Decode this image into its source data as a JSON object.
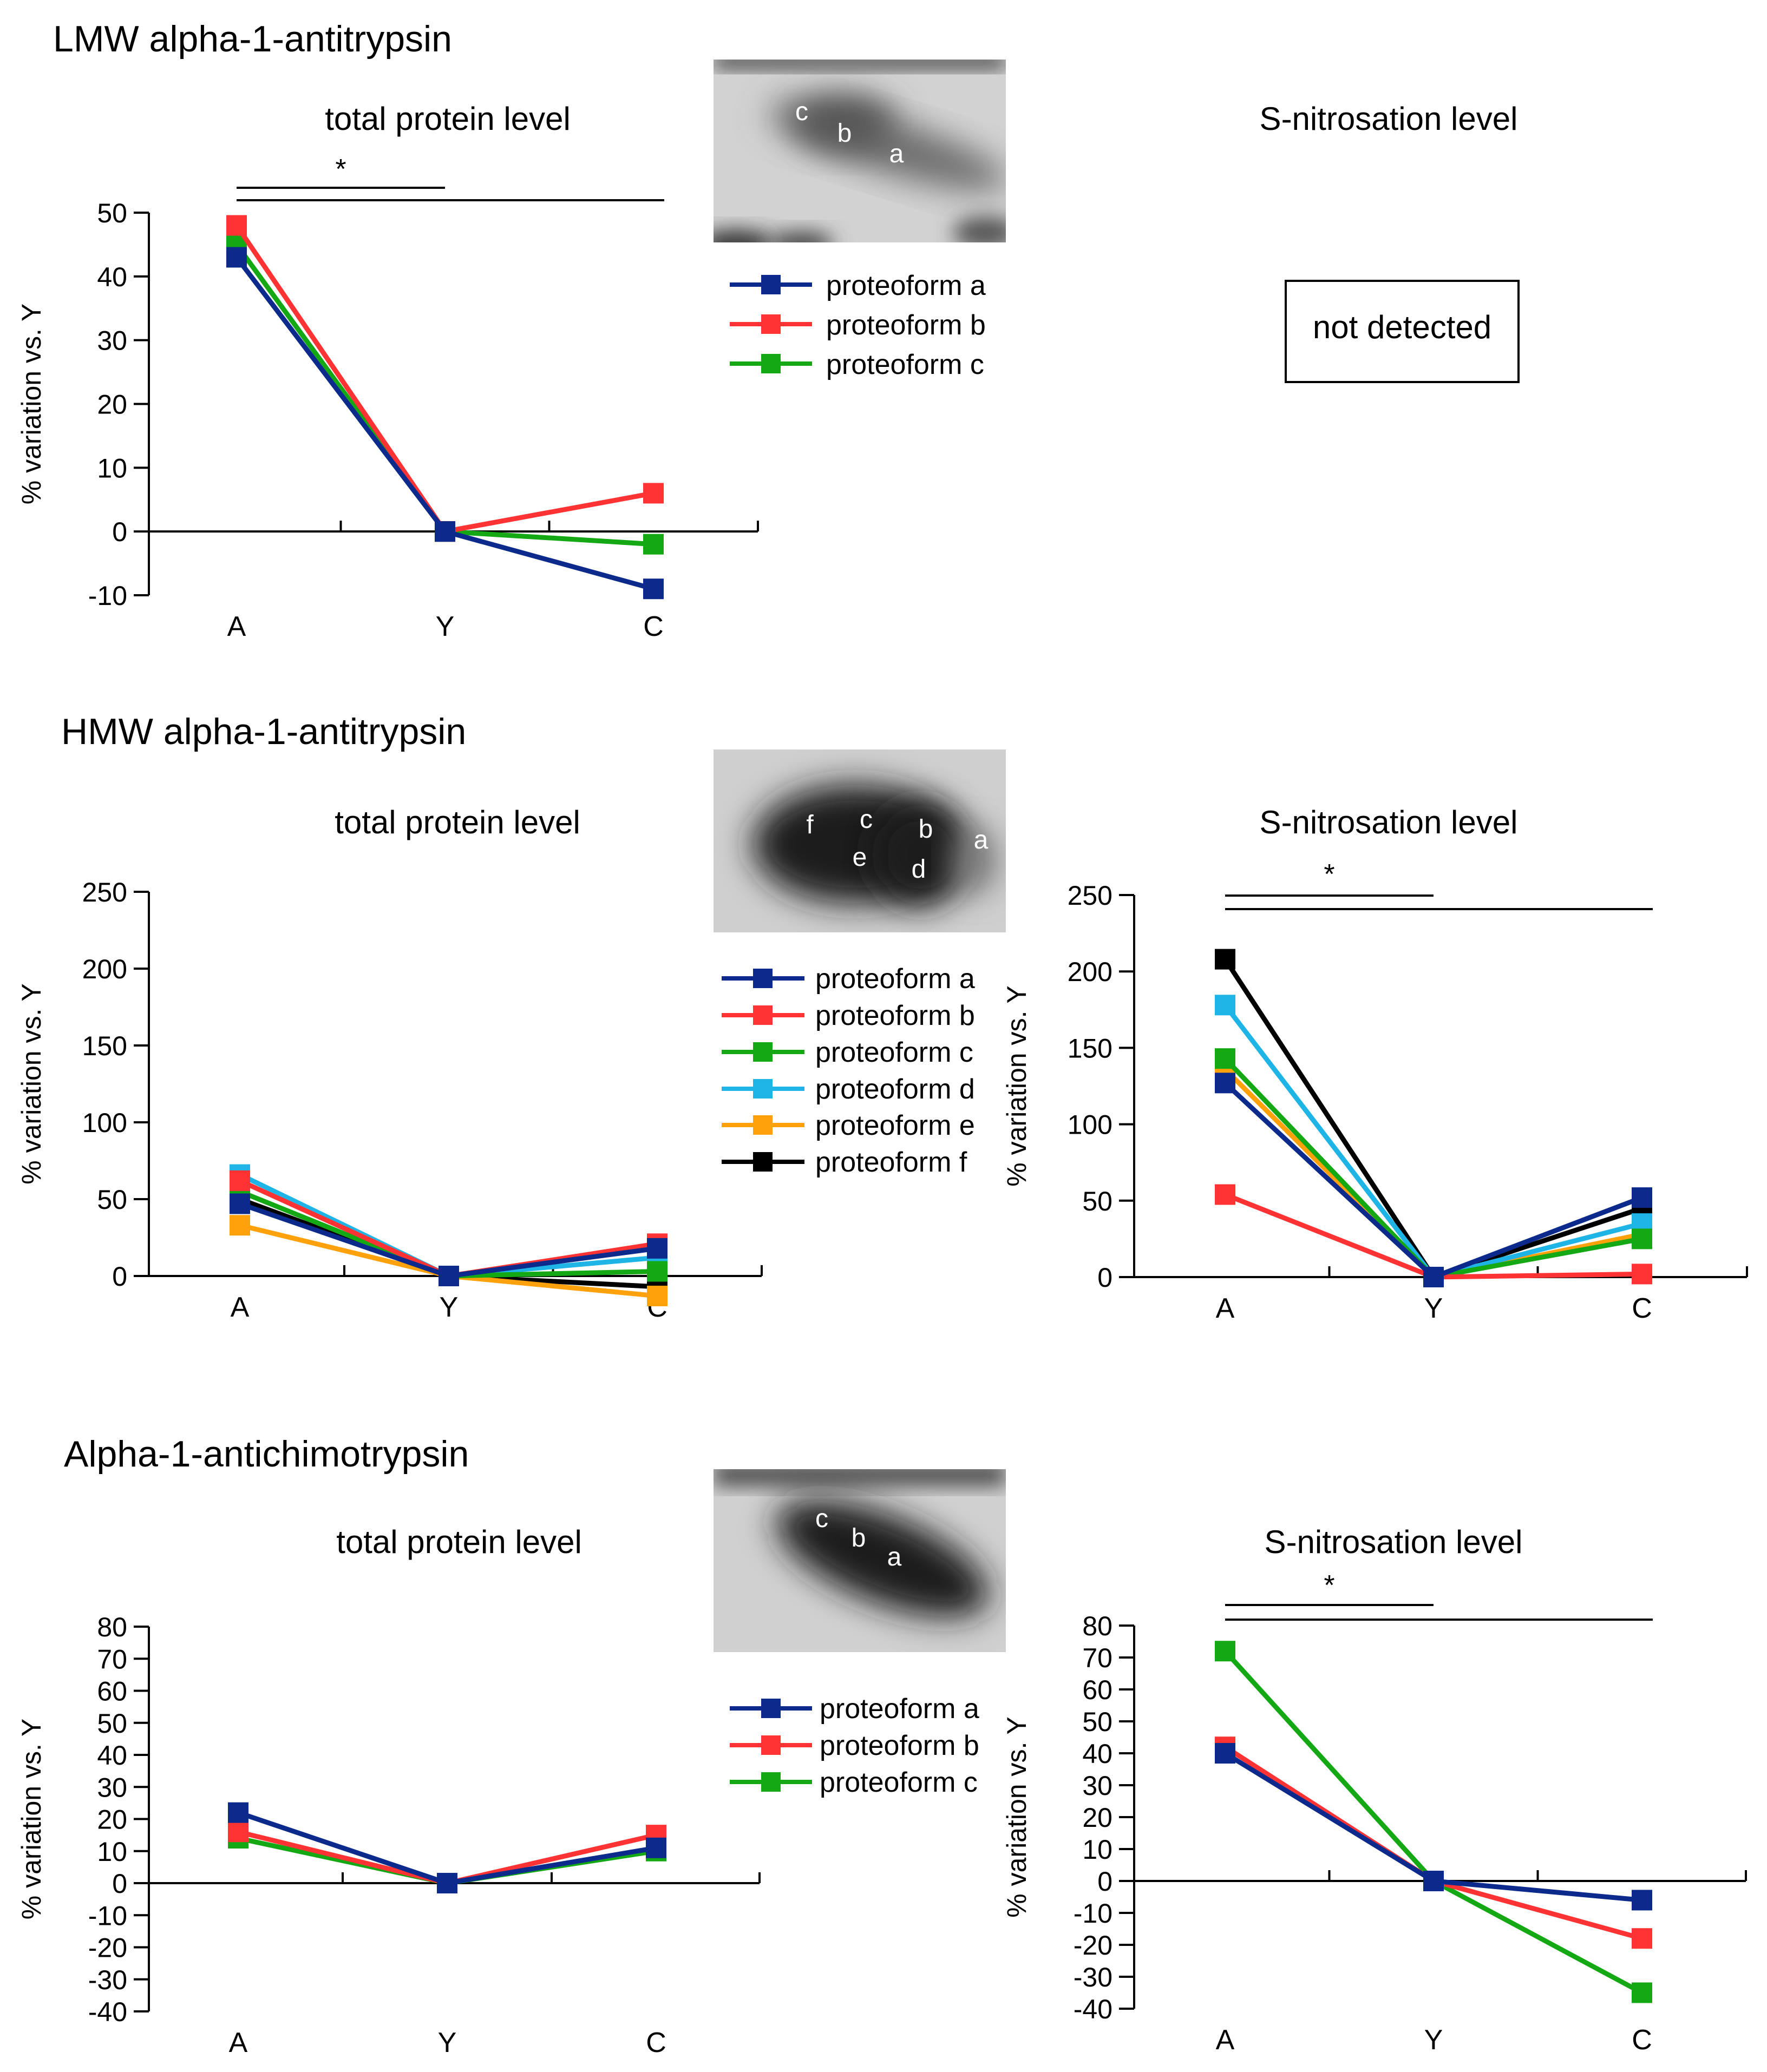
{
  "colors": {
    "a": "#0b2a8c",
    "b": "#ff3333",
    "c": "#14a814",
    "d": "#1eb4e6",
    "e": "#ffa10a",
    "f": "#000000"
  },
  "sections": [
    {
      "title": "LMW alpha-1-antitrypsin",
      "blot_labels": [
        "c",
        "b",
        "a"
      ],
      "not_detected": "not detected",
      "legend": [
        "proteoform a",
        "proteoform b",
        "proteoform c"
      ]
    },
    {
      "title": "HMW alpha-1-antitrypsin",
      "blot_labels": [
        "f",
        "c",
        "b",
        "a",
        "e",
        "d"
      ],
      "legend": [
        "proteoform a",
        "proteoform b",
        "proteoform c",
        "proteoform d",
        "proteoform e",
        "proteoform f"
      ]
    },
    {
      "title": "Alpha-1-antichimotrypsin",
      "blot_labels": [
        "c",
        "b",
        "a"
      ],
      "legend": [
        "proteoform a",
        "proteoform b",
        "proteoform c"
      ]
    }
  ],
  "chart_data": [
    {
      "id": "lmw_total",
      "type": "line",
      "title": "total protein level",
      "ylabel": "% variation vs. Y",
      "categories": [
        "A",
        "Y",
        "C"
      ],
      "ylim": [
        -10,
        50
      ],
      "yticks": [
        -10,
        0,
        10,
        20,
        30,
        40,
        50
      ],
      "significance": "*",
      "series": [
        {
          "name": "proteoform a",
          "key": "a",
          "values": [
            43,
            0,
            -9
          ]
        },
        {
          "name": "proteoform b",
          "key": "b",
          "values": [
            48,
            0,
            6
          ]
        },
        {
          "name": "proteoform c",
          "key": "c",
          "values": [
            45,
            0,
            -2
          ]
        }
      ]
    },
    {
      "id": "lmw_snitro",
      "type": "text",
      "title": "S-nitrosation level"
    },
    {
      "id": "hmw_total",
      "type": "line",
      "title": "total protein level",
      "ylabel": "% variation vs. Y",
      "categories": [
        "A",
        "Y",
        "C"
      ],
      "ylim": [
        0,
        250
      ],
      "yticks": [
        0,
        50,
        100,
        150,
        200,
        250
      ],
      "series": [
        {
          "name": "proteoform a",
          "key": "a",
          "values": [
            47,
            0,
            18
          ]
        },
        {
          "name": "proteoform b",
          "key": "b",
          "values": [
            62,
            0,
            21
          ]
        },
        {
          "name": "proteoform c",
          "key": "c",
          "values": [
            55,
            0,
            3
          ]
        },
        {
          "name": "proteoform d",
          "key": "d",
          "values": [
            66,
            0,
            12
          ]
        },
        {
          "name": "proteoform e",
          "key": "e",
          "values": [
            33,
            0,
            -13
          ]
        },
        {
          "name": "proteoform f",
          "key": "f",
          "values": [
            50,
            0,
            -7
          ]
        }
      ]
    },
    {
      "id": "hmw_snitro",
      "type": "line",
      "title": "S-nitrosation level",
      "ylabel": "% variation vs. Y",
      "categories": [
        "A",
        "Y",
        "C"
      ],
      "ylim": [
        0,
        250
      ],
      "yticks": [
        0,
        50,
        100,
        150,
        200,
        250
      ],
      "significance": "*",
      "series": [
        {
          "name": "proteoform a",
          "key": "a",
          "values": [
            127,
            0,
            52
          ]
        },
        {
          "name": "proteoform b",
          "key": "b",
          "values": [
            54,
            0,
            2
          ]
        },
        {
          "name": "proteoform c",
          "key": "c",
          "values": [
            143,
            0,
            25
          ]
        },
        {
          "name": "proteoform d",
          "key": "d",
          "values": [
            178,
            0,
            35
          ]
        },
        {
          "name": "proteoform e",
          "key": "e",
          "values": [
            136,
            0,
            28
          ]
        },
        {
          "name": "proteoform f",
          "key": "f",
          "values": [
            208,
            0,
            45
          ]
        }
      ]
    },
    {
      "id": "aact_total",
      "type": "line",
      "title": "total protein level",
      "ylabel": "% variation vs. Y",
      "categories": [
        "A",
        "Y",
        "C"
      ],
      "ylim": [
        -40,
        80
      ],
      "yticks": [
        -40,
        -30,
        -20,
        -10,
        0,
        10,
        20,
        30,
        40,
        50,
        60,
        70,
        80
      ],
      "series": [
        {
          "name": "proteoform a",
          "key": "a",
          "values": [
            22,
            0,
            11
          ]
        },
        {
          "name": "proteoform b",
          "key": "b",
          "values": [
            16,
            0,
            15
          ]
        },
        {
          "name": "proteoform c",
          "key": "c",
          "values": [
            14,
            0,
            10
          ]
        }
      ]
    },
    {
      "id": "aact_snitro",
      "type": "line",
      "title": "S-nitrosation level",
      "ylabel": "% variation vs. Y",
      "categories": [
        "A",
        "Y",
        "C"
      ],
      "ylim": [
        -40,
        80
      ],
      "yticks": [
        -40,
        -30,
        -20,
        -10,
        0,
        10,
        20,
        30,
        40,
        50,
        60,
        70,
        80
      ],
      "significance": "*",
      "series": [
        {
          "name": "proteoform a",
          "key": "a",
          "values": [
            40,
            0,
            -6
          ]
        },
        {
          "name": "proteoform b",
          "key": "b",
          "values": [
            42,
            0,
            -18
          ]
        },
        {
          "name": "proteoform c",
          "key": "c",
          "values": [
            72,
            0,
            -35
          ]
        }
      ]
    }
  ]
}
